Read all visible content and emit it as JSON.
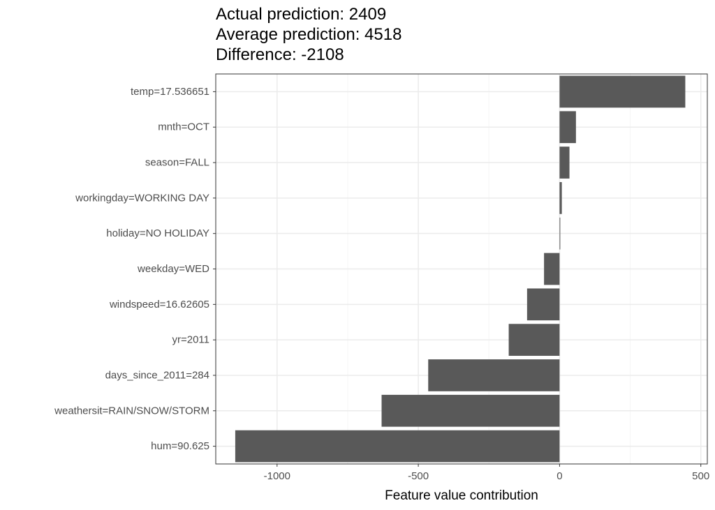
{
  "title_lines": [
    "Actual prediction: 2409",
    "Average prediction: 4518",
    "Difference: -2108"
  ],
  "chart_data": {
    "type": "bar",
    "orientation": "horizontal",
    "title": "Actual prediction: 2409\nAverage prediction: 4518\nDifference: -2108",
    "xlabel": "Feature value contribution",
    "ylabel": "",
    "categories": [
      "temp=17.536651",
      "mnth=OCT",
      "season=FALL",
      "workingday=WORKING DAY",
      "holiday=NO HOLIDAY",
      "weekday=WED",
      "windspeed=16.62605",
      "yr=2011",
      "days_since_2011=284",
      "weathersit=RAIN/SNOW/STORM",
      "hum=90.625"
    ],
    "values": [
      445,
      58,
      35,
      8,
      2,
      -55,
      -115,
      -180,
      -465,
      -630,
      -1148
    ],
    "xlim": [
      -1217,
      523
    ],
    "xticks": [
      -1000,
      -500,
      0,
      500
    ],
    "xtick_labels": [
      "-1000",
      "-500",
      "0",
      "500"
    ],
    "grid": true,
    "legend": "none",
    "colors": {
      "bar": "#595959",
      "panel_border": "#333333",
      "grid_major": "#ebebeb",
      "grid_minor": "#f5f5f5",
      "tick_text": "#4d4d4d"
    }
  }
}
